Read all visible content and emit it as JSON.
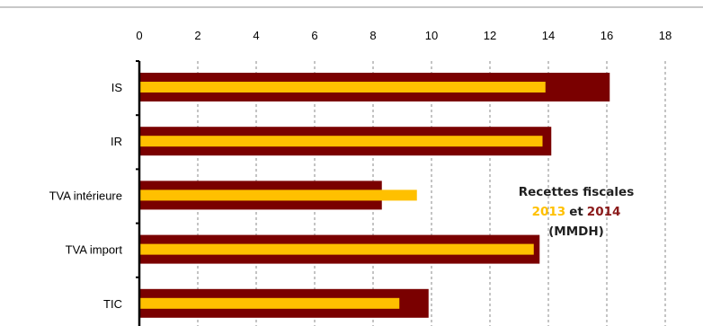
{
  "chart_data": {
    "type": "bar",
    "orientation": "horizontal",
    "categories": [
      "IS",
      "IR",
      "TVA intérieure",
      "TVA import",
      "TIC"
    ],
    "series": [
      {
        "name": "2014",
        "color": "#7a0000",
        "values": [
          16.1,
          14.1,
          8.3,
          13.7,
          9.9
        ]
      },
      {
        "name": "2013",
        "color": "#ffc000",
        "values": [
          13.9,
          13.8,
          9.5,
          13.5,
          8.9
        ]
      }
    ],
    "x_ticks": [
      0,
      2,
      4,
      6,
      8,
      10,
      12,
      14,
      16,
      18
    ],
    "xlim": [
      0,
      18
    ],
    "x_axis_position": "top",
    "grid": "vertical-dashed",
    "annotation": {
      "line1": "Recettes fiscales",
      "year1": "2013",
      "connector": "et",
      "year2": "2014",
      "line3": "(MMDH)",
      "color_year1": "#ffc000",
      "color_year2": "#8b1a1a",
      "color_text": "#1f1f1f"
    }
  }
}
